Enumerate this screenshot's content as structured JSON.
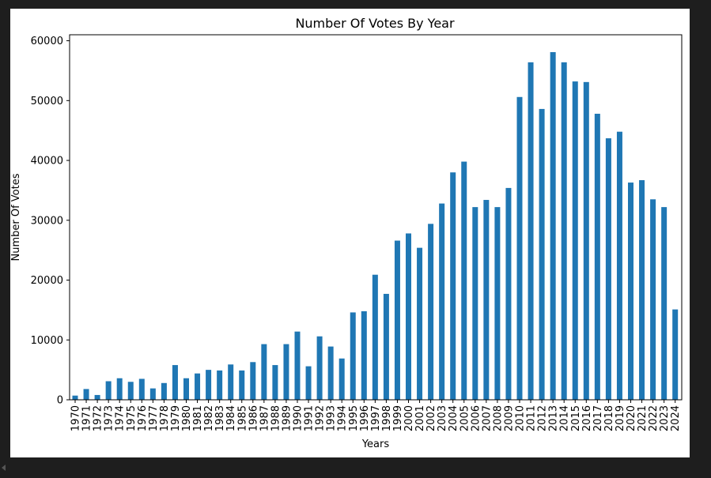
{
  "chart_data": {
    "type": "bar",
    "title": "Number Of Votes By Year",
    "xlabel": "Years",
    "ylabel": "Number Of Votes",
    "ylim": [
      0,
      61000
    ],
    "yticks": [
      0,
      10000,
      20000,
      30000,
      40000,
      50000,
      60000
    ],
    "grid": false,
    "bar_color": "#1f77b4",
    "categories": [
      "1970",
      "1971",
      "1972",
      "1973",
      "1974",
      "1975",
      "1976",
      "1977",
      "1978",
      "1979",
      "1980",
      "1981",
      "1982",
      "1983",
      "1984",
      "1985",
      "1986",
      "1987",
      "1988",
      "1989",
      "1990",
      "1991",
      "1992",
      "1993",
      "1994",
      "1995",
      "1996",
      "1997",
      "1998",
      "1999",
      "2000",
      "2001",
      "2002",
      "2003",
      "2004",
      "2005",
      "2006",
      "2007",
      "2008",
      "2009",
      "2010",
      "2011",
      "2012",
      "2013",
      "2014",
      "2015",
      "2016",
      "2017",
      "2018",
      "2019",
      "2020",
      "2021",
      "2022",
      "2023",
      "2024"
    ],
    "values": [
      700,
      1800,
      800,
      3100,
      3600,
      3000,
      3500,
      1900,
      2800,
      5800,
      3600,
      4400,
      5000,
      4900,
      5900,
      4900,
      6300,
      9300,
      5800,
      9300,
      11400,
      5600,
      10600,
      8900,
      6900,
      14600,
      14800,
      20900,
      17700,
      26600,
      27800,
      25400,
      29400,
      32800,
      38000,
      39800,
      32200,
      33400,
      32200,
      35400,
      50600,
      56400,
      48600,
      58100,
      56400,
      53200,
      53100,
      47800,
      43700,
      44800,
      36300,
      36700,
      33500,
      32200,
      15100
    ]
  }
}
